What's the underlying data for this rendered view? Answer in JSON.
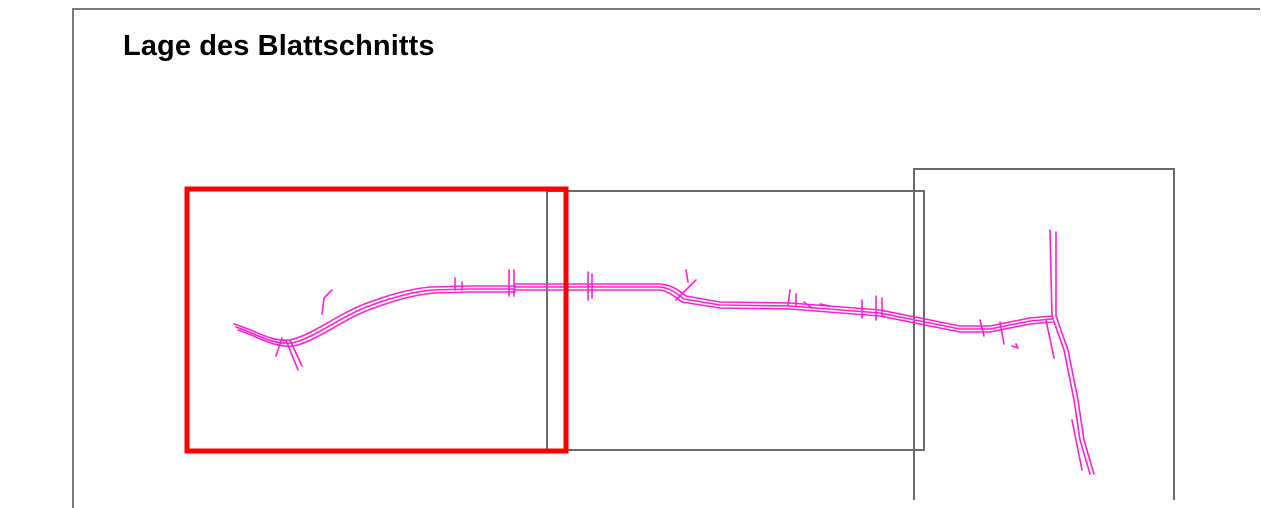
{
  "title": "Lage des Blattschnitts",
  "colors": {
    "frame": "#7a7a7a",
    "sheet_outline": "#6b6b6b",
    "active_sheet": "#ff0000",
    "route": "#ff1fd2",
    "background": "#ffffff"
  },
  "sheets": [
    {
      "id": "sheet-1",
      "active": true
    },
    {
      "id": "sheet-2",
      "active": false
    },
    {
      "id": "sheet-3",
      "active": false
    }
  ]
}
